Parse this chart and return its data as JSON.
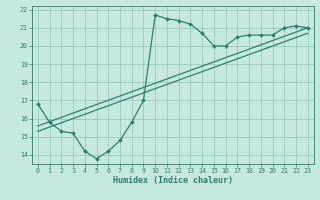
{
  "title": "",
  "xlabel": "Humidex (Indice chaleur)",
  "ylabel": "",
  "bg_color": "#c5e8e0",
  "line_color": "#2e7f72",
  "grid_color": "#8bbfb8",
  "xmin": -0.5,
  "xmax": 23.5,
  "ymin": 13.5,
  "ymax": 22.2,
  "yticks": [
    14,
    15,
    16,
    17,
    18,
    19,
    20,
    21,
    22
  ],
  "xticks": [
    0,
    1,
    2,
    3,
    4,
    5,
    6,
    7,
    8,
    9,
    10,
    11,
    12,
    13,
    14,
    15,
    16,
    17,
    18,
    19,
    20,
    21,
    22,
    23
  ],
  "curve1_x": [
    0,
    1,
    2,
    3,
    4,
    5,
    6,
    7,
    8,
    9,
    10,
    11,
    12,
    13,
    14,
    15,
    16,
    17,
    18,
    19,
    20,
    21,
    22,
    23
  ],
  "curve1_y": [
    16.8,
    15.8,
    15.3,
    15.2,
    14.2,
    13.8,
    14.2,
    14.8,
    15.8,
    17.0,
    21.7,
    21.5,
    21.4,
    21.2,
    20.7,
    20.0,
    20.0,
    20.5,
    20.6,
    20.6,
    20.6,
    21.0,
    21.1,
    21.0
  ],
  "line1_x": [
    0,
    23
  ],
  "line1_y": [
    15.6,
    21.0
  ],
  "line2_x": [
    0,
    23
  ],
  "line2_y": [
    15.3,
    20.7
  ],
  "xlabel_fontsize": 6.0,
  "tick_fontsize": 4.8
}
